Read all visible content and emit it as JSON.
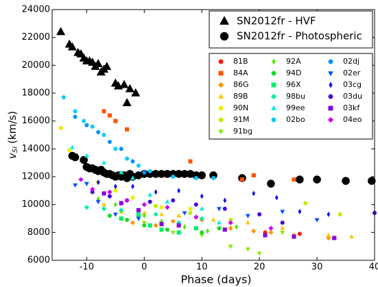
{
  "chart_data": {
    "type": "scatter",
    "xlabel": "Phase (days)",
    "ylabel": {
      "symbol": "v",
      "subscript": "Si",
      "unit": "(km/s)"
    },
    "xlim": [
      -16,
      40
    ],
    "xticks": [
      -10,
      0,
      10,
      20,
      30,
      40
    ],
    "ylim": [
      6000,
      24000
    ],
    "yticks": [
      6000,
      8000,
      10000,
      12000,
      14000,
      16000,
      18000,
      20000,
      22000,
      24000
    ],
    "legend": "upper right",
    "series": [
      {
        "name": "SN2012fr - HVF",
        "color": "#000000",
        "marker": "^",
        "size": 8,
        "group": "main",
        "x": [
          -14.5,
          -13,
          -12.5,
          -11.5,
          -11,
          -10.5,
          -10,
          -9.5,
          -9,
          -8.5,
          -8,
          -7.5,
          -7,
          -6.5,
          -5,
          -4.5,
          -3.5,
          -3,
          -2.5,
          -1.5
        ],
        "values": [
          22400,
          21500,
          21300,
          20900,
          20800,
          20500,
          20300,
          20300,
          20200,
          19900,
          20100,
          19500,
          19700,
          19900,
          18700,
          18500,
          18600,
          17300,
          18300,
          18000
        ]
      },
      {
        "name": "SN2012fr - Photospheric",
        "color": "#000000",
        "marker": "o",
        "size": 8,
        "group": "main",
        "x": [
          -12.5,
          -12,
          -10.5,
          -10,
          -9.5,
          -9,
          -8.5,
          -8,
          -7.5,
          -7,
          -6.5,
          -6,
          -5.5,
          -5,
          -4.5,
          -4,
          -3.5,
          -3,
          -2.5,
          -2,
          -1,
          0,
          1,
          2,
          3,
          4,
          5,
          6,
          7,
          8,
          9,
          10,
          12,
          17,
          22,
          27,
          30,
          35,
          39.5
        ],
        "values": [
          13500,
          13400,
          13200,
          12700,
          12600,
          12600,
          12500,
          12400,
          12500,
          12300,
          12200,
          12200,
          12100,
          12000,
          12100,
          12000,
          12100,
          11900,
          12200,
          12000,
          12100,
          12200,
          12200,
          12200,
          12200,
          12200,
          12200,
          12200,
          12200,
          12200,
          12100,
          12100,
          12100,
          11900,
          11500,
          11800,
          11800,
          11700,
          11700
        ]
      },
      {
        "name": "81B",
        "color": "#ff1a00",
        "marker": "o",
        "size": 4,
        "x": [
          21,
          27,
          33
        ],
        "values": [
          8000,
          7900,
          7600
        ]
      },
      {
        "name": "84A",
        "color": "#ff5500",
        "marker": "s",
        "size": 4,
        "x": [
          -7,
          -6,
          -5,
          -3,
          8,
          17,
          19,
          26
        ],
        "values": [
          16700,
          16400,
          16000,
          15400,
          13100,
          11800,
          12100,
          11800
        ]
      },
      {
        "name": "86G",
        "color": "#ff9500",
        "marker": "D",
        "size": 4,
        "x": [
          -6,
          -2,
          2,
          5,
          10,
          15,
          19,
          22,
          26,
          32
        ],
        "values": [
          9200,
          8700,
          8500,
          8800,
          8900,
          8300,
          8100,
          8000,
          7800,
          7600
        ]
      },
      {
        "name": "89B",
        "color": "#ffc800",
        "marker": "^",
        "size": 4,
        "x": [
          -7,
          -4,
          0,
          3,
          6,
          9,
          12,
          18,
          24,
          32,
          36
        ],
        "values": [
          10000,
          9500,
          9400,
          9300,
          9200,
          9100,
          8900,
          8700,
          8300,
          7800,
          7700
        ]
      },
      {
        "name": "90N",
        "color": "#eeee00",
        "marker": "o",
        "size": 4,
        "x": [
          -14.5,
          -13,
          -8,
          -5,
          -2,
          3,
          8
        ],
        "values": [
          15500,
          13900,
          11600,
          11000,
          10500,
          9800,
          9700
        ]
      },
      {
        "name": "91M",
        "color": "#bbee00",
        "marker": "o",
        "size": 4,
        "x": [
          -7,
          -3,
          2,
          8,
          15,
          28,
          34
        ],
        "values": [
          10800,
          10300,
          9900,
          9400,
          8900,
          10100,
          9300
        ]
      },
      {
        "name": "91bg",
        "color": "#80ee00",
        "marker": "v",
        "size": 4,
        "x": [
          -4,
          0,
          5,
          10,
          15,
          18,
          20,
          24
        ],
        "values": [
          9500,
          8700,
          8000,
          7800,
          7000,
          6800,
          6500,
          8000
        ]
      },
      {
        "name": "92A",
        "color": "#44ee00",
        "marker": "d",
        "size": 4,
        "x": [
          -8,
          -5,
          0,
          3,
          7,
          11,
          16
        ],
        "values": [
          10400,
          10000,
          9200,
          8800,
          8400,
          8100,
          8400
        ]
      },
      {
        "name": "94D",
        "color": "#11dd22",
        "marker": "o",
        "size": 4,
        "x": [
          -6,
          -3,
          0,
          4,
          10,
          13
        ],
        "values": [
          9200,
          8900,
          8500,
          8200,
          8000,
          8300
        ]
      },
      {
        "name": "96X",
        "color": "#00ee66",
        "marker": "s",
        "size": 4,
        "x": [
          -4,
          -1,
          1,
          3,
          6,
          9
        ],
        "values": [
          9000,
          9200,
          8500,
          8200,
          8000,
          8300
        ]
      },
      {
        "name": "98bu",
        "color": "#00eeaa",
        "marker": "D",
        "size": 4,
        "x": [
          -10,
          -7,
          -4,
          -1,
          2,
          6,
          10
        ],
        "values": [
          9800,
          9700,
          9600,
          9400,
          9300,
          8700,
          9000
        ]
      },
      {
        "name": "99ee",
        "color": "#00eedd",
        "marker": "^",
        "size": 4,
        "x": [
          -12.5,
          -10,
          -7,
          -4,
          -2,
          1,
          4,
          10,
          13
        ],
        "values": [
          14100,
          13500,
          13000,
          12300,
          11900,
          10700,
          10200,
          9700,
          8700
        ]
      },
      {
        "name": "02bo",
        "color": "#00ccff",
        "marker": "o",
        "size": 4,
        "x": [
          -14,
          -12,
          -10.5,
          -9,
          -7,
          -5,
          -3,
          -1,
          1,
          5,
          9,
          12
        ],
        "values": [
          17700,
          16700,
          16000,
          15600,
          15000,
          14000,
          13300,
          12800,
          12400,
          12000,
          11900,
          11900
        ]
      },
      {
        "name": "02dj",
        "color": "#0090ff",
        "marker": "o",
        "size": 4,
        "x": [
          -12,
          -10,
          -8,
          -6,
          -4,
          -2,
          0
        ],
        "values": [
          16300,
          15700,
          15200,
          14500,
          14000,
          13100,
          12300
        ]
      },
      {
        "name": "02er",
        "color": "#0050ff",
        "marker": "v",
        "size": 4,
        "x": [
          -12,
          -10,
          -8,
          -5,
          -1,
          3,
          7,
          13,
          18,
          24,
          30
        ],
        "values": [
          11400,
          11500,
          10200,
          9300,
          9000,
          8600,
          9400,
          9700,
          9200,
          9500,
          8900
        ]
      },
      {
        "name": "03cg",
        "color": "#1010ee",
        "marker": "d",
        "size": 4,
        "x": [
          -8,
          -5,
          -2,
          2,
          6,
          10,
          14,
          19,
          23,
          27,
          32
        ],
        "values": [
          11600,
          11300,
          11300,
          10900,
          11000,
          10600,
          10300,
          10800,
          10500,
          9500,
          9300
        ]
      },
      {
        "name": "03du",
        "color": "#4400dd",
        "marker": "o",
        "size": 4,
        "x": [
          -9,
          -6,
          -3,
          1,
          5,
          9,
          14,
          20,
          24,
          40
        ],
        "values": [
          10900,
          10600,
          10300,
          10200,
          10300,
          10000,
          9700,
          9300,
          8700,
          9400
        ]
      },
      {
        "name": "03kf",
        "color": "#8800dd",
        "marker": "s",
        "size": 4,
        "x": [
          -7,
          -4,
          -1,
          3,
          6,
          14,
          21,
          26,
          33
        ],
        "values": [
          10800,
          10100,
          9600,
          8600,
          8500,
          8200,
          7800,
          7700,
          7600
        ]
      },
      {
        "name": "04eo",
        "color": "#cc00ee",
        "marker": "D",
        "size": 4,
        "x": [
          -11,
          -9,
          -6,
          -3,
          0,
          4,
          9,
          15,
          22
        ],
        "values": [
          11800,
          11100,
          10900,
          10300,
          10000,
          9800,
          9100,
          8700,
          8300
        ]
      }
    ]
  }
}
